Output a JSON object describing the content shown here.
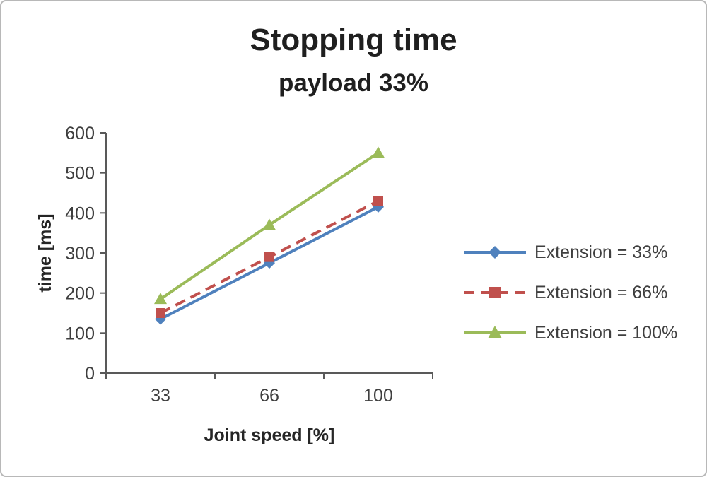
{
  "chart_data": {
    "type": "line",
    "title": "Stopping time",
    "subtitle": "payload 33%",
    "xlabel": "Joint speed [%]",
    "ylabel": "time [ms]",
    "categories": [
      "33",
      "66",
      "100"
    ],
    "ylim": [
      0,
      600
    ],
    "yticks": [
      0,
      100,
      200,
      300,
      400,
      500,
      600
    ],
    "grid": false,
    "legend_position": "right",
    "axis_color": "#595959",
    "series": [
      {
        "name": "Extension = 33%",
        "values": [
          135,
          275,
          415
        ],
        "color": "#4f81bd",
        "marker": "diamond",
        "line_style": "solid"
      },
      {
        "name": "Extension = 66%",
        "values": [
          150,
          290,
          430
        ],
        "color": "#c0504d",
        "marker": "square",
        "line_style": "dashed"
      },
      {
        "name": "Extension = 100%",
        "values": [
          185,
          370,
          550
        ],
        "color": "#9bbb59",
        "marker": "triangle",
        "line_style": "solid"
      }
    ]
  }
}
